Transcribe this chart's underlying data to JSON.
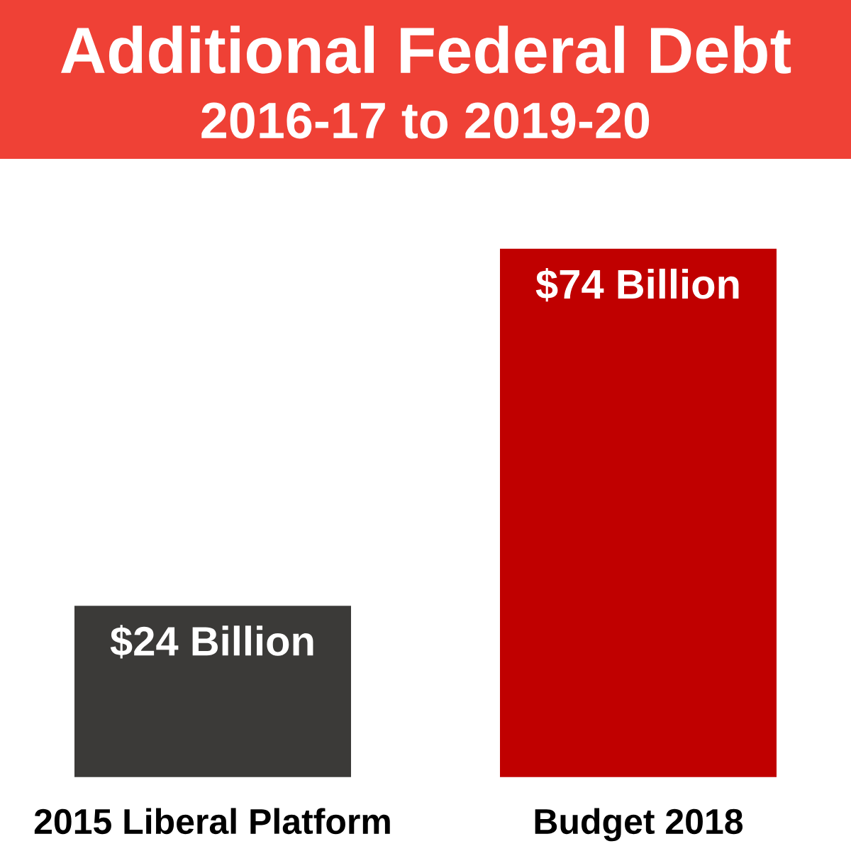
{
  "chart_data": {
    "type": "bar",
    "title": "Additional Federal Debt",
    "subtitle": "2016-17 to 2019-20",
    "categories": [
      "2015 Liberal Platform",
      "Budget 2018"
    ],
    "values": [
      24,
      74
    ],
    "colors": [
      "#3b3a38",
      "#c00000"
    ],
    "value_labels": [
      "$24 Billion",
      "$74 Billion"
    ]
  }
}
